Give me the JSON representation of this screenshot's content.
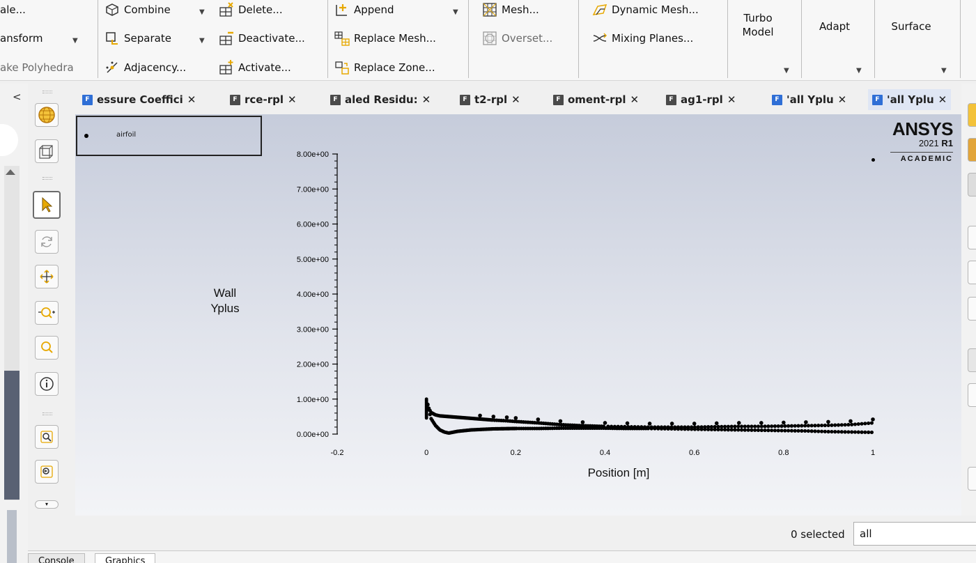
{
  "ribbon": {
    "col1": {
      "row1": "ale...",
      "row2": "ansform",
      "row3": "ake Polyhedra"
    },
    "col2": {
      "combine": "Combine",
      "separate": "Separate",
      "adjacency": "Adjacency..."
    },
    "col3": {
      "delete": "Delete...",
      "deactivate": "Deactivate...",
      "activate": "Activate..."
    },
    "col4": {
      "append": "Append",
      "replace_mesh": "Replace Mesh...",
      "replace_zone": "Replace Zone..."
    },
    "col5": {
      "mesh": "Mesh...",
      "overset": "Overset..."
    },
    "col6": {
      "dynamic_mesh": "Dynamic Mesh...",
      "mixing_planes": "Mixing Planes..."
    },
    "turbo_model_line1": "Turbo",
    "turbo_model_line2": "Model",
    "adapt": "Adapt",
    "surface": "Surface"
  },
  "tabs": [
    {
      "label": "essure Coeffici",
      "color": "#2f6fd6",
      "active": false
    },
    {
      "label": "rce-rpl",
      "color": "#4a4a4a",
      "active": false
    },
    {
      "label": "aled Residu:",
      "color": "#4a4a4a",
      "active": false
    },
    {
      "label": "t2-rpl",
      "color": "#4a4a4a",
      "active": false
    },
    {
      "label": "oment-rpl",
      "color": "#4a4a4a",
      "active": false
    },
    {
      "label": "ag1-rpl",
      "color": "#4a4a4a",
      "active": false
    },
    {
      "label": "'all Yplu",
      "color": "#2f6fd6",
      "active": false
    },
    {
      "label": "'all Yplu",
      "color": "#2f6fd6",
      "active": true
    }
  ],
  "tab_close": "✕",
  "tab_file_letter": "F",
  "ansys": {
    "logo": "ANSYS",
    "version_num": "2021",
    "version_r": "R1",
    "edition": "ACADEMIC"
  },
  "chart_data": {
    "type": "scatter",
    "legend": [
      "airfoil"
    ],
    "legend_placement": "top-left",
    "xlabel": "Position [m]",
    "ylabel": "Wall\nYplus",
    "ylabel_line1": "Wall",
    "ylabel_line2": "Yplus",
    "xlim": [
      -0.2,
      1.0
    ],
    "ylim": [
      0,
      8
    ],
    "x_ticks": [
      "-0.2",
      "0",
      "0.2",
      "0.4",
      "0.6",
      "0.8",
      "1"
    ],
    "y_ticks": [
      "0.00e+00",
      "1.00e+00",
      "2.00e+00",
      "3.00e+00",
      "4.00e+00",
      "5.00e+00",
      "6.00e+00",
      "7.00e+00",
      "8.00e+00"
    ],
    "series": [
      {
        "name": "airfoil",
        "upper_x": [
          0.0,
          0.005,
          0.01,
          0.02,
          0.03,
          0.05,
          0.08,
          0.1,
          0.12,
          0.15,
          0.18,
          0.2,
          0.25,
          0.3,
          0.35,
          0.4,
          0.45,
          0.5,
          0.55,
          0.6,
          0.65,
          0.7,
          0.75,
          0.8,
          0.85,
          0.9,
          0.95,
          1.0
        ],
        "upper_y": [
          1.0,
          0.75,
          0.62,
          0.55,
          0.52,
          0.5,
          0.47,
          0.45,
          0.43,
          0.4,
          0.38,
          0.36,
          0.32,
          0.27,
          0.24,
          0.22,
          0.21,
          0.2,
          0.2,
          0.2,
          0.21,
          0.22,
          0.22,
          0.23,
          0.24,
          0.25,
          0.27,
          0.32
        ],
        "lower_x": [
          0.0,
          0.01,
          0.02,
          0.03,
          0.04,
          0.05,
          0.07,
          0.1,
          0.15,
          0.2,
          0.25,
          0.3,
          0.35,
          0.4,
          0.45,
          0.5,
          0.55,
          0.6,
          0.65,
          0.7,
          0.75,
          0.8,
          0.85,
          0.9,
          0.95,
          1.0
        ],
        "lower_y": [
          1.0,
          0.45,
          0.25,
          0.12,
          0.06,
          0.03,
          0.08,
          0.12,
          0.15,
          0.16,
          0.16,
          0.17,
          0.17,
          0.17,
          0.16,
          0.16,
          0.15,
          0.14,
          0.13,
          0.12,
          0.11,
          0.1,
          0.09,
          0.07,
          0.06,
          0.05
        ]
      }
    ],
    "grid": false
  },
  "bottom": {
    "selected": "0 selected",
    "filter_value": "all",
    "console_tab": "Console",
    "graphics_tab": "Graphics"
  }
}
